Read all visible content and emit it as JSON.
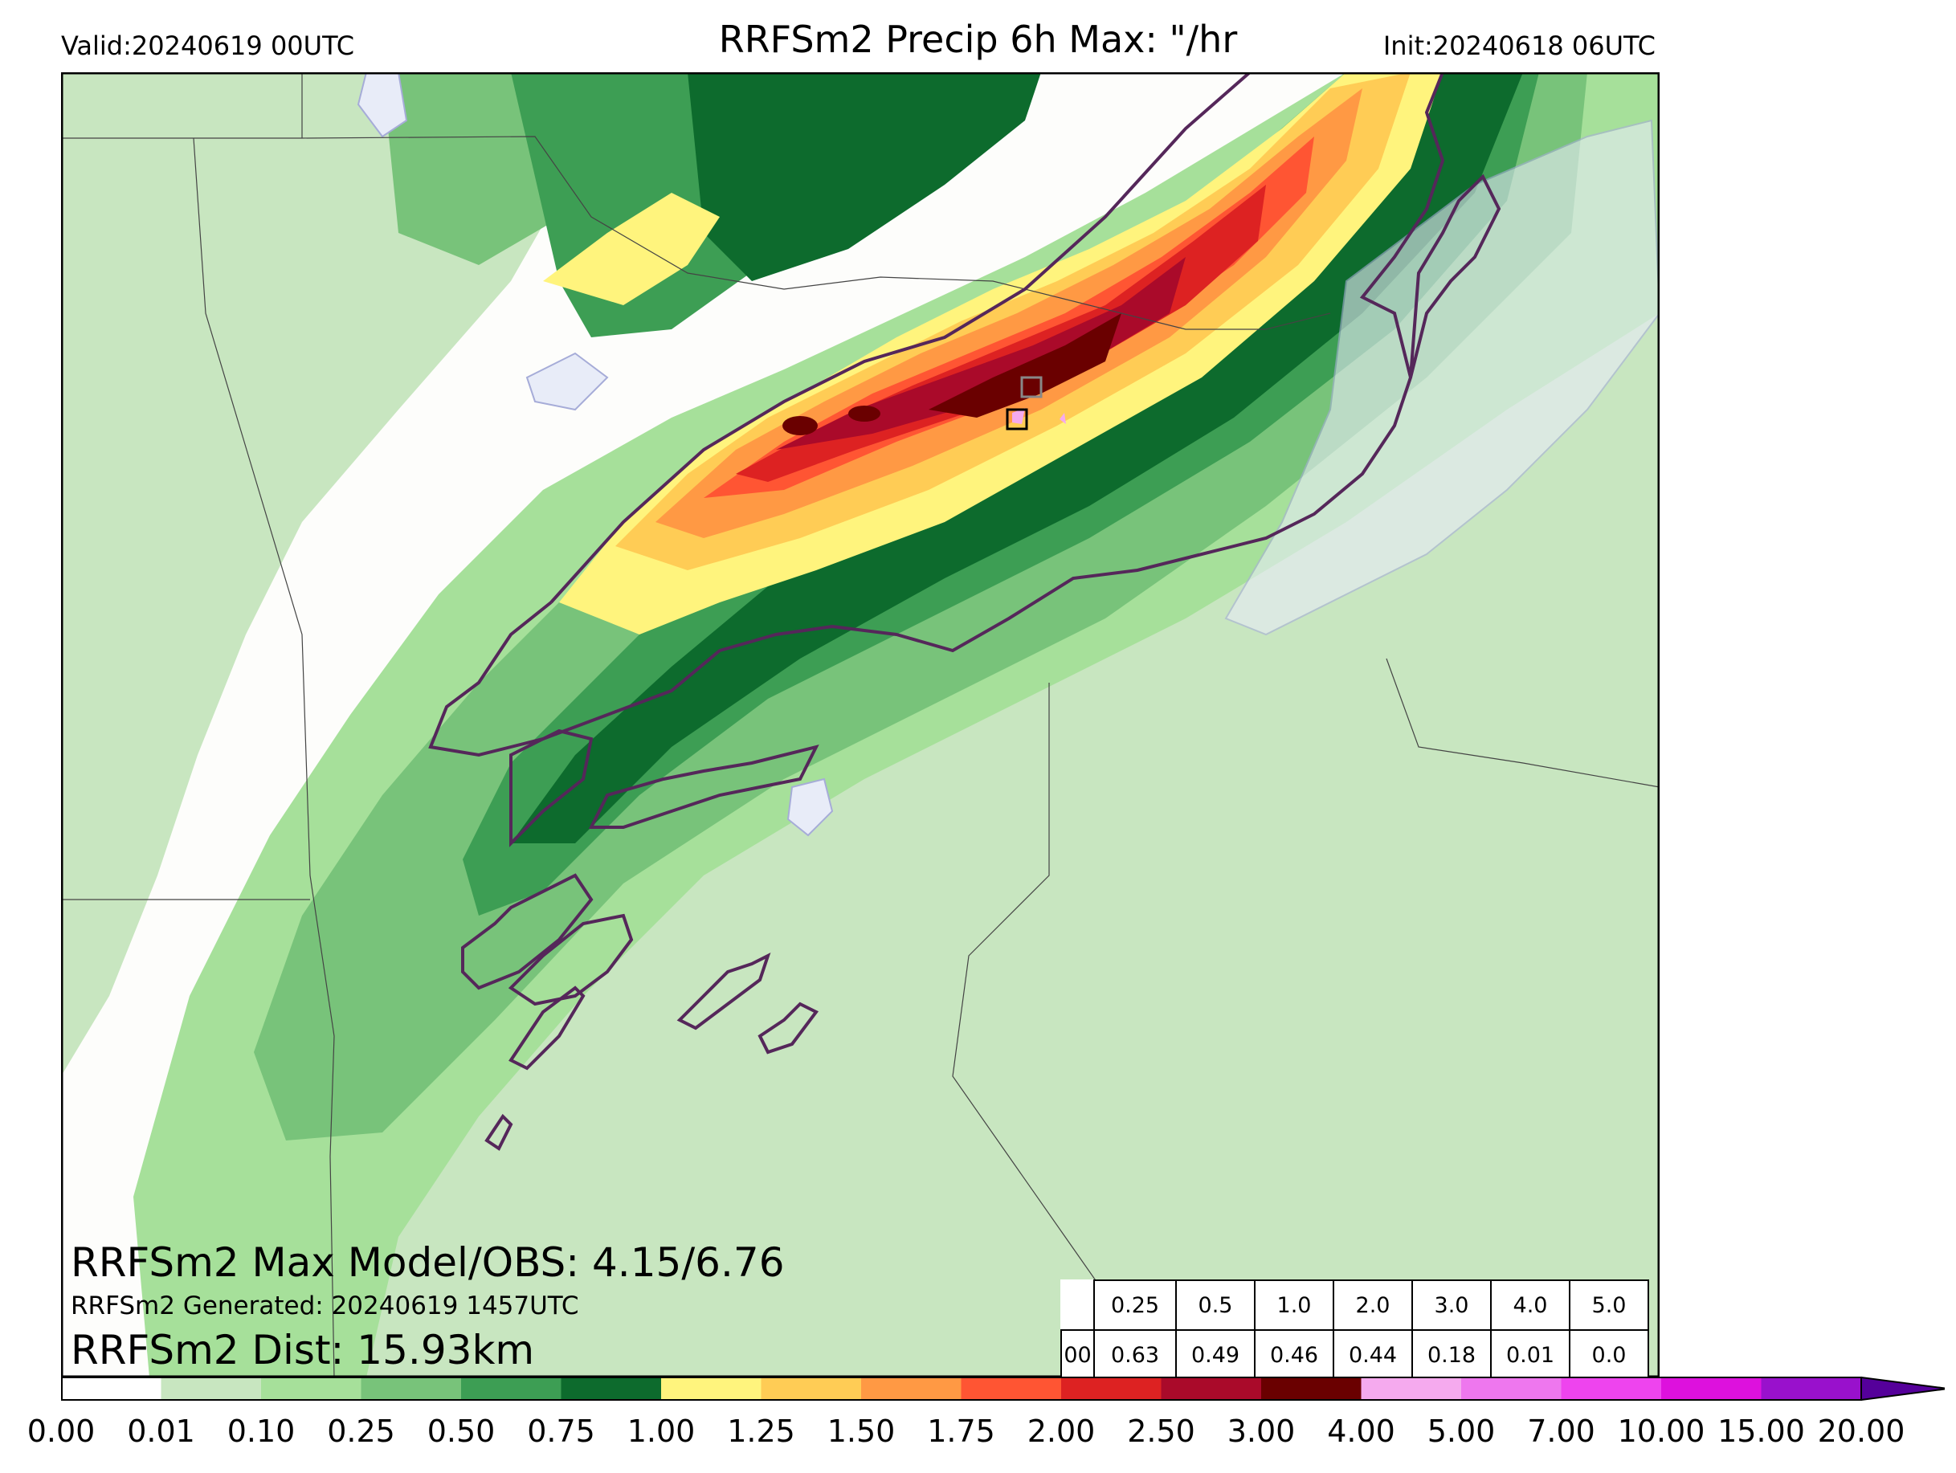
{
  "header": {
    "title": "RRFSm2 Precip 6h Max: \"/hr",
    "valid": "Valid:20240619 00UTC",
    "init": "Init:20240618 06UTC"
  },
  "overlay": {
    "max_line": "RRFSm2 Max Model/OBS: 4.15/6.76",
    "generated_line": "RRFSm2 Generated: 20240619 1457UTC",
    "dist_line": "RRFSm2 Dist: 15.93km"
  },
  "stats_table": {
    "thresholds": [
      "0.25",
      "0.5",
      "1.0",
      "2.0",
      "3.0",
      "4.0",
      "5.0"
    ],
    "row_label": "00",
    "values": [
      "0.63",
      "0.49",
      "0.46",
      "0.44",
      "0.18",
      "0.01",
      "0.0"
    ]
  },
  "colorbar": {
    "ticks": [
      "0.00",
      "0.01",
      "0.10",
      "0.25",
      "0.50",
      "0.75",
      "1.00",
      "1.25",
      "1.50",
      "1.75",
      "2.00",
      "2.50",
      "3.00",
      "4.00",
      "5.00",
      "7.00",
      "10.00",
      "15.00",
      "20.00"
    ],
    "colors": [
      "#ffffff",
      "#c8e6c0",
      "#a6e09a",
      "#78c37a",
      "#3d9e54",
      "#0d6b2d",
      "#fff47d",
      "#ffcc55",
      "#ff9944",
      "#ff5533",
      "#dd2222",
      "#aa0a2a",
      "#6a0000",
      "#f5aaee",
      "#ee77ee",
      "#ee44ee",
      "#dd11dd",
      "#9911cc"
    ],
    "extend_color": "#55009a"
  },
  "colors": {
    "frame": "#000000",
    "background": "#fdfdfb",
    "obs_contour": "#55275a",
    "lake": "#e8ecf8",
    "lake_edge": "#a6acd8",
    "border": "#444444"
  }
}
